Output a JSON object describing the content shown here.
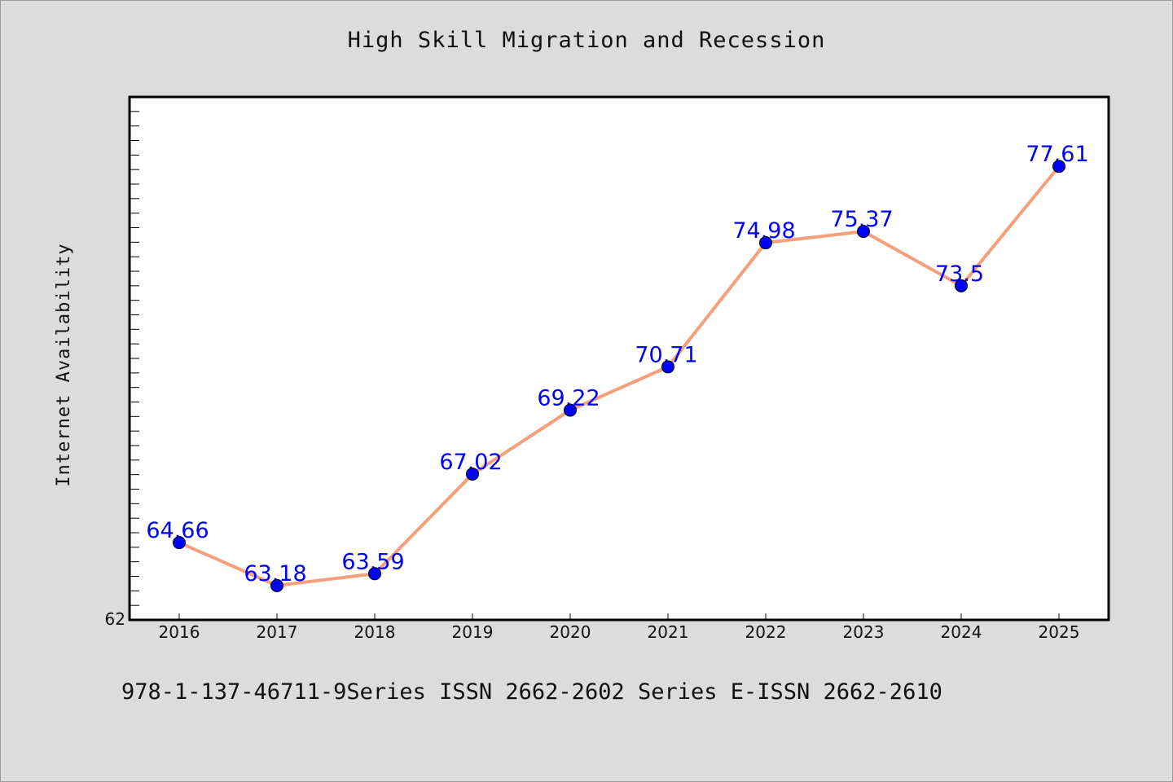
{
  "chart_data": {
    "type": "line",
    "title": "High Skill Migration and Recession",
    "xlabel": "",
    "ylabel": "Internet Availability",
    "x": [
      "2016",
      "2017",
      "2018",
      "2019",
      "2020",
      "2021",
      "2022",
      "2023",
      "2024",
      "2025"
    ],
    "series": [
      {
        "values": [
          64.66,
          63.18,
          63.59,
          67.02,
          69.22,
          70.71,
          74.98,
          75.37,
          73.5,
          77.61
        ]
      }
    ],
    "data_labels": [
      "64.66",
      "63.18",
      "63.59",
      "67.02",
      "69.22",
      "70.71",
      "74.98",
      "75.37",
      "73.5",
      "77.61"
    ],
    "ylim": [
      62,
      80
    ],
    "y_tick_labels": [
      "62"
    ],
    "grid": false,
    "line_color": "#f4a07c",
    "marker_color": "#0000ff",
    "label_color": "#0000ff"
  },
  "footer": "978-1-137-46711-9Series ISSN 2662-2602 Series E-ISSN 2662-2610"
}
